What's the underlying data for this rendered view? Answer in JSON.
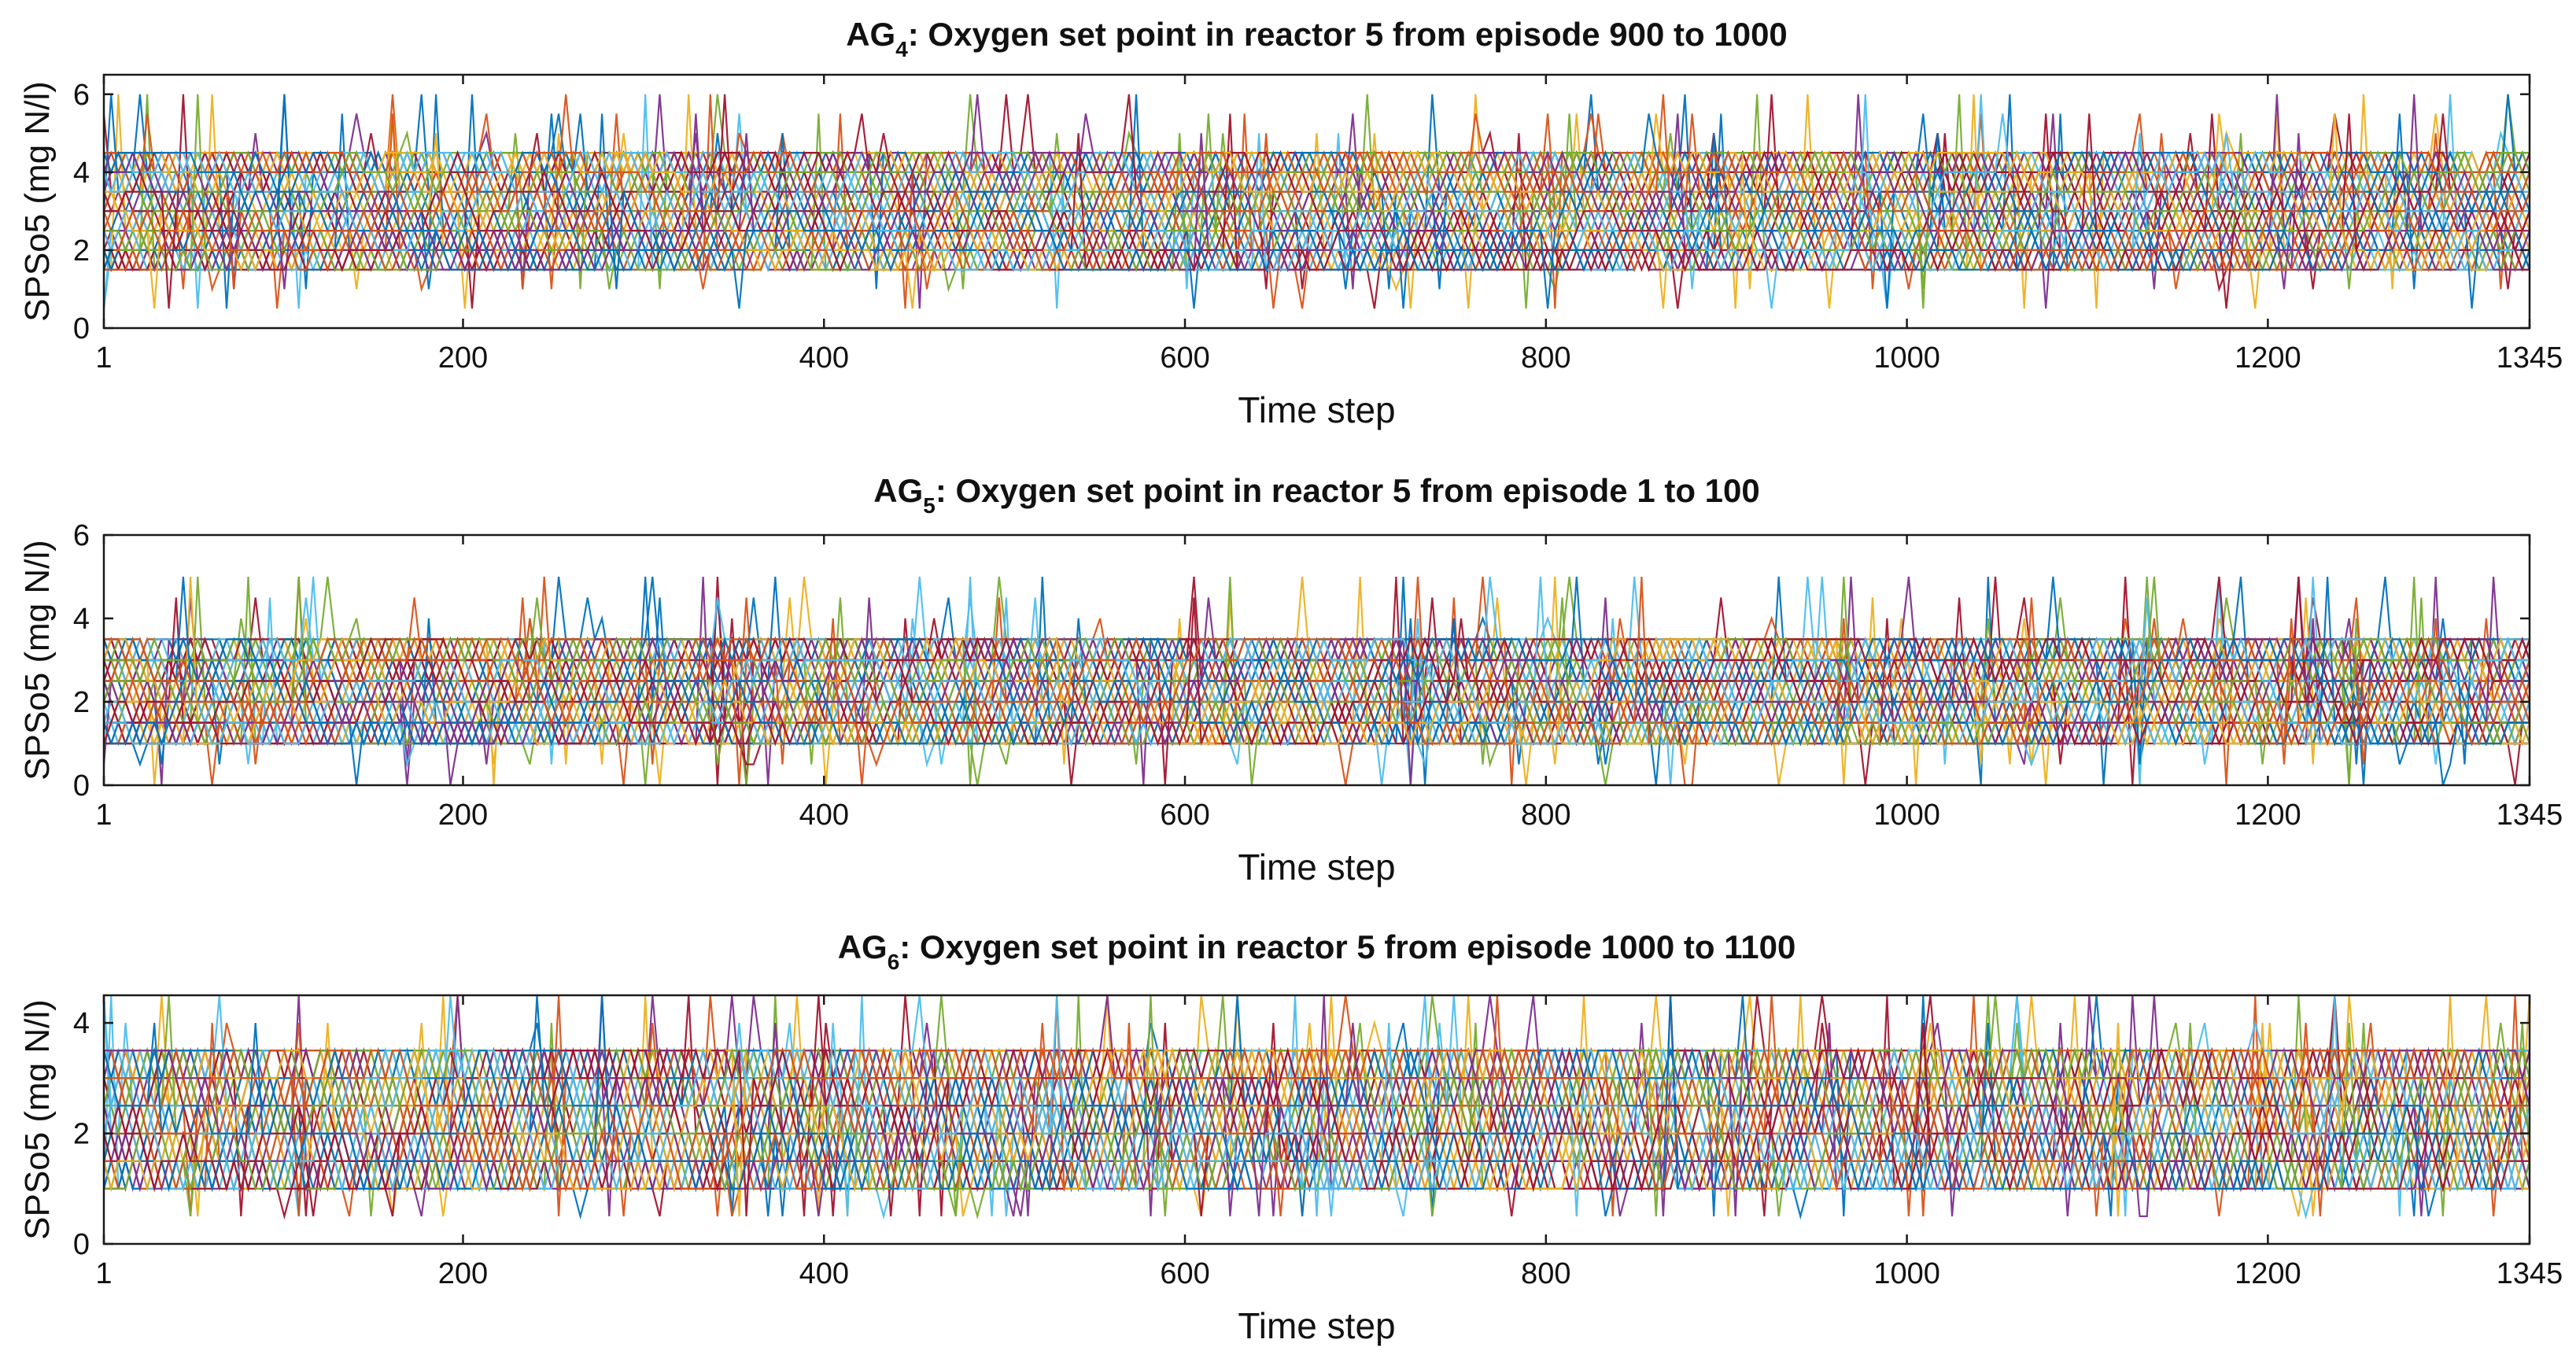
{
  "chart_data": [
    {
      "type": "line",
      "title_prefix": "AG",
      "title_subscript": "4",
      "title_rest": ": Oxygen set point in reactor 5 from episode 900 to 1000",
      "xlabel": "Time step",
      "ylabel": "SPSo5 (mg N/l)",
      "xlim": [
        1,
        1345
      ],
      "ylim": [
        0,
        6.5
      ],
      "x_ticks": [
        1,
        200,
        400,
        600,
        800,
        1000,
        1200,
        1345
      ],
      "y_ticks": [
        0,
        2,
        4,
        6
      ],
      "episodes": 100,
      "value_band": [
        1.5,
        4.5
      ],
      "peak_max": 6.5,
      "min_value": 0,
      "grid": false
    },
    {
      "type": "line",
      "title_prefix": "AG",
      "title_subscript": "5",
      "title_rest": ": Oxygen set point in reactor 5 from episode 1 to 100",
      "xlabel": "Time step",
      "ylabel": "SPSo5 (mg N/l)",
      "xlim": [
        1,
        1345
      ],
      "ylim": [
        0,
        6
      ],
      "x_ticks": [
        1,
        200,
        400,
        600,
        800,
        1000,
        1200,
        1345
      ],
      "y_ticks": [
        0,
        2,
        4,
        6
      ],
      "episodes": 100,
      "value_band": [
        1,
        3.5
      ],
      "peak_max": 5,
      "min_value": 0,
      "grid": false
    },
    {
      "type": "line",
      "title_prefix": "AG",
      "title_subscript": "6",
      "title_rest": ": Oxygen set point in reactor 5 from episode 1000 to 1100",
      "xlabel": "Time step",
      "ylabel": "SPSo5 (mg N/l)",
      "xlim": [
        1,
        1345
      ],
      "ylim": [
        0,
        4.5
      ],
      "x_ticks": [
        1,
        200,
        400,
        600,
        800,
        1000,
        1200,
        1345
      ],
      "y_ticks": [
        0,
        2,
        4
      ],
      "episodes": 100,
      "value_band": [
        1,
        3.5
      ],
      "peak_max": 4.5,
      "min_value": 0.5,
      "grid": false
    }
  ],
  "series_colors": [
    "#0072BD",
    "#D95319",
    "#EDB120",
    "#7E2F8E",
    "#77AC30",
    "#4DBEEE",
    "#A2142F"
  ]
}
